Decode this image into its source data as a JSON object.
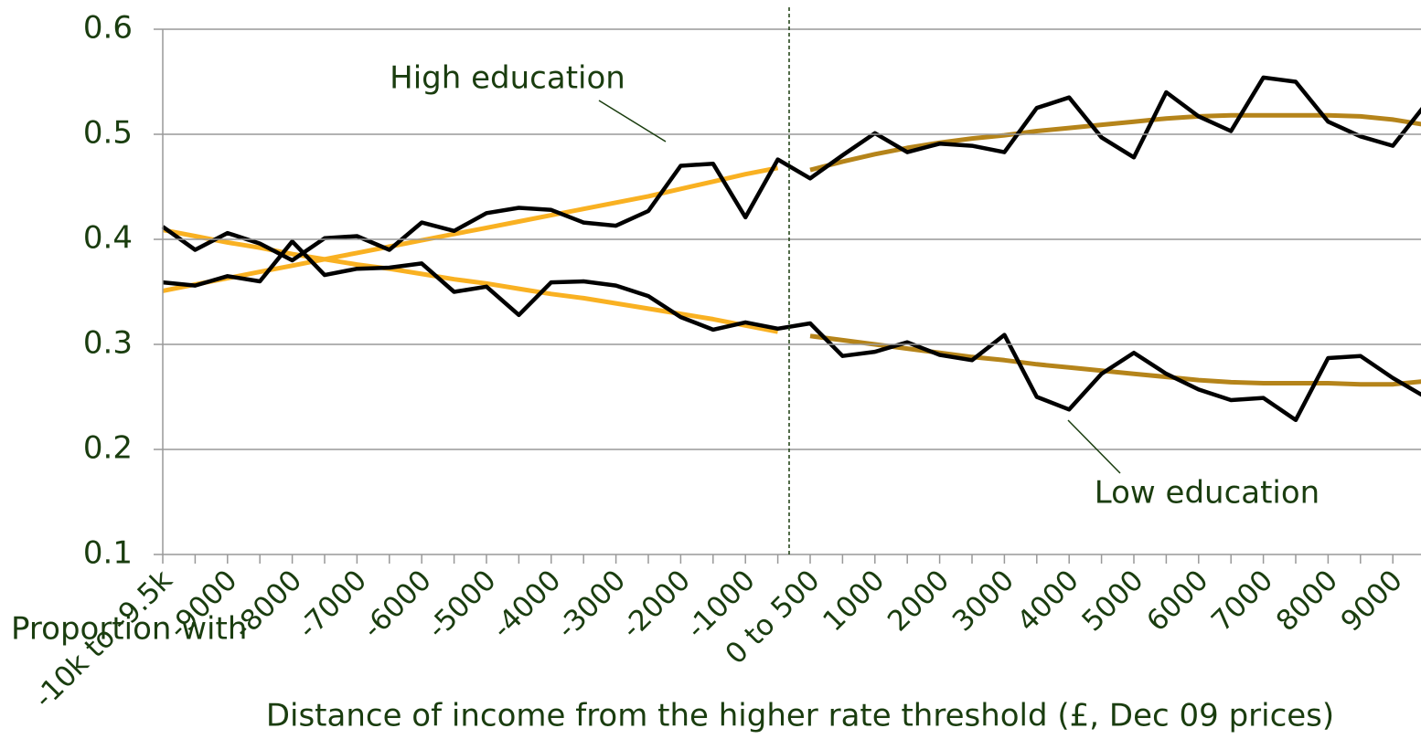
{
  "chart_data": {
    "type": "line",
    "x_label": "Distance of income from the higher rate threshold (£, Dec 09 prices)",
    "y_label": "Proportion with",
    "categories": [
      "-10k to -9.5k",
      null,
      "-9000",
      null,
      "-8000",
      null,
      "-7000",
      null,
      "-6000",
      null,
      "-5000",
      null,
      "-4000",
      null,
      "-3000",
      null,
      "-2000",
      null,
      "-1000",
      null,
      "0 to 500",
      null,
      "1000",
      null,
      "2000",
      null,
      "3000",
      null,
      "4000",
      null,
      "5000",
      null,
      "6000",
      null,
      "7000",
      null,
      "8000",
      null,
      "9000",
      null
    ],
    "ylim": [
      0.1,
      0.6
    ],
    "yticks": [
      0.1,
      0.2,
      0.3,
      0.4,
      0.5,
      0.6
    ],
    "grid": true,
    "series": [
      {
        "name": "High education",
        "color": "#000000",
        "values": [
          0.412,
          0.39,
          0.406,
          0.396,
          0.38,
          0.401,
          0.403,
          0.39,
          0.416,
          0.408,
          0.425,
          0.43,
          0.428,
          0.416,
          0.413,
          0.427,
          0.47,
          0.472,
          0.421,
          0.476,
          0.458,
          0.48,
          0.501,
          0.483,
          0.491,
          0.489,
          0.483,
          0.525,
          0.535,
          0.497,
          0.478,
          0.54,
          0.517,
          0.503,
          0.554,
          0.55,
          0.512,
          0.498,
          0.489,
          0.528
        ]
      },
      {
        "name": "Low education",
        "color": "#000000",
        "values": [
          0.359,
          0.356,
          0.365,
          0.36,
          0.398,
          0.366,
          0.372,
          0.373,
          0.377,
          0.35,
          0.355,
          0.328,
          0.359,
          0.36,
          0.356,
          0.346,
          0.326,
          0.314,
          0.321,
          0.315,
          0.32,
          0.289,
          0.293,
          0.302,
          0.29,
          0.285,
          0.309,
          0.25,
          0.238,
          0.272,
          0.292,
          0.272,
          0.257,
          0.247,
          0.249,
          0.228,
          0.287,
          0.289,
          0.268,
          0.25
        ]
      },
      {
        "color": "#f9b122",
        "values": [
          0.351,
          0.357,
          0.363,
          0.369,
          0.375,
          0.381,
          0.387,
          0.393,
          0.399,
          0.405,
          0.411,
          0.417,
          0.423,
          0.429,
          0.435,
          0.441,
          0.448,
          0.455,
          0.462,
          0.468,
          null,
          null,
          null,
          null,
          null,
          null,
          null,
          null,
          null,
          null,
          null,
          null,
          null,
          null,
          null,
          null,
          null,
          null,
          null,
          null
        ]
      },
      {
        "color": "#f9b122",
        "values": [
          0.409,
          0.403,
          0.397,
          0.392,
          0.386,
          0.381,
          0.376,
          0.372,
          0.367,
          0.362,
          0.358,
          0.353,
          0.348,
          0.344,
          0.339,
          0.334,
          0.329,
          0.324,
          0.318,
          0.312,
          null,
          null,
          null,
          null,
          null,
          null,
          null,
          null,
          null,
          null,
          null,
          null,
          null,
          null,
          null,
          null,
          null,
          null,
          null,
          null
        ]
      },
      {
        "color": "#b5841a",
        "values": [
          null,
          null,
          null,
          null,
          null,
          null,
          null,
          null,
          null,
          null,
          null,
          null,
          null,
          null,
          null,
          null,
          null,
          null,
          null,
          null,
          0.466,
          0.474,
          0.481,
          0.487,
          0.492,
          0.496,
          0.499,
          0.503,
          0.506,
          0.509,
          0.512,
          0.515,
          0.517,
          0.518,
          0.518,
          0.518,
          0.518,
          0.517,
          0.514,
          0.509
        ]
      },
      {
        "color": "#b5841a",
        "values": [
          null,
          null,
          null,
          null,
          null,
          null,
          null,
          null,
          null,
          null,
          null,
          null,
          null,
          null,
          null,
          null,
          null,
          null,
          null,
          null,
          0.308,
          0.304,
          0.3,
          0.296,
          0.292,
          0.288,
          0.285,
          0.281,
          0.278,
          0.275,
          0.272,
          0.269,
          0.266,
          0.264,
          0.263,
          0.263,
          0.263,
          0.262,
          0.262,
          0.265
        ]
      }
    ]
  }
}
